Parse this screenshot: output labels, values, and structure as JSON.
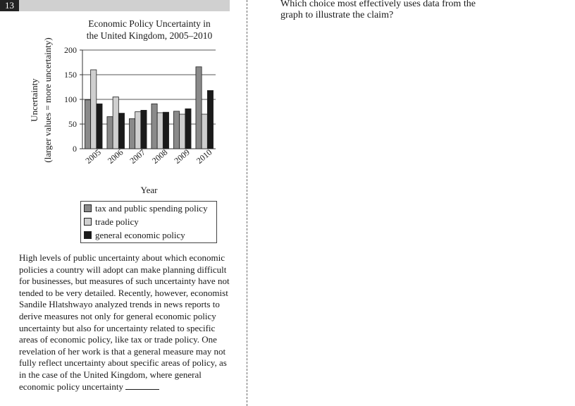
{
  "question_number": "13",
  "question_text": "Which choice most effectively uses data from the graph to illustrate the claim?",
  "passage": "High levels of public uncertainty about which economic policies a country will adopt can make planning difficult for businesses, but measures of such uncertainty have not tended to be very detailed. Recently, however, economist Sandile Hlatshwayo analyzed trends in news reports to derive measures not only for general economic policy uncertainty but also for uncertainty related to specific areas of economic policy, like tax or trade policy. One revelation of her work is that a general measure may not fully reflect uncertainty about specific areas of policy, as in the case of the United Kingdom, where general economic policy uncertainty",
  "colors": {
    "tax": "#8a8a8a",
    "trade": "#cfcfcf",
    "general": "#1a1a1a"
  },
  "chart_data": {
    "type": "bar",
    "title_line1": "Economic Policy Uncertainty in",
    "title_line2": "the United Kingdom, 2005–2010",
    "xlabel": "Year",
    "ylabel_line1": "Uncertainty",
    "ylabel_line2": "(larger values = more uncertainty)",
    "ylim": [
      0,
      200
    ],
    "yticks": [
      "0",
      "50",
      "100",
      "150",
      "200"
    ],
    "grid": true,
    "legend_position": "bottom",
    "categories": [
      "2005",
      "2006",
      "2007",
      "2008",
      "2009",
      "2010"
    ],
    "series": [
      {
        "name": "tax and public spending policy",
        "values": [
          99,
          65,
          61,
          91,
          76,
          166
        ]
      },
      {
        "name": "trade policy",
        "values": [
          160,
          105,
          75,
          73,
          70,
          70
        ]
      },
      {
        "name": "general economic policy",
        "values": [
          91,
          72,
          78,
          74,
          81,
          118
        ]
      }
    ]
  }
}
